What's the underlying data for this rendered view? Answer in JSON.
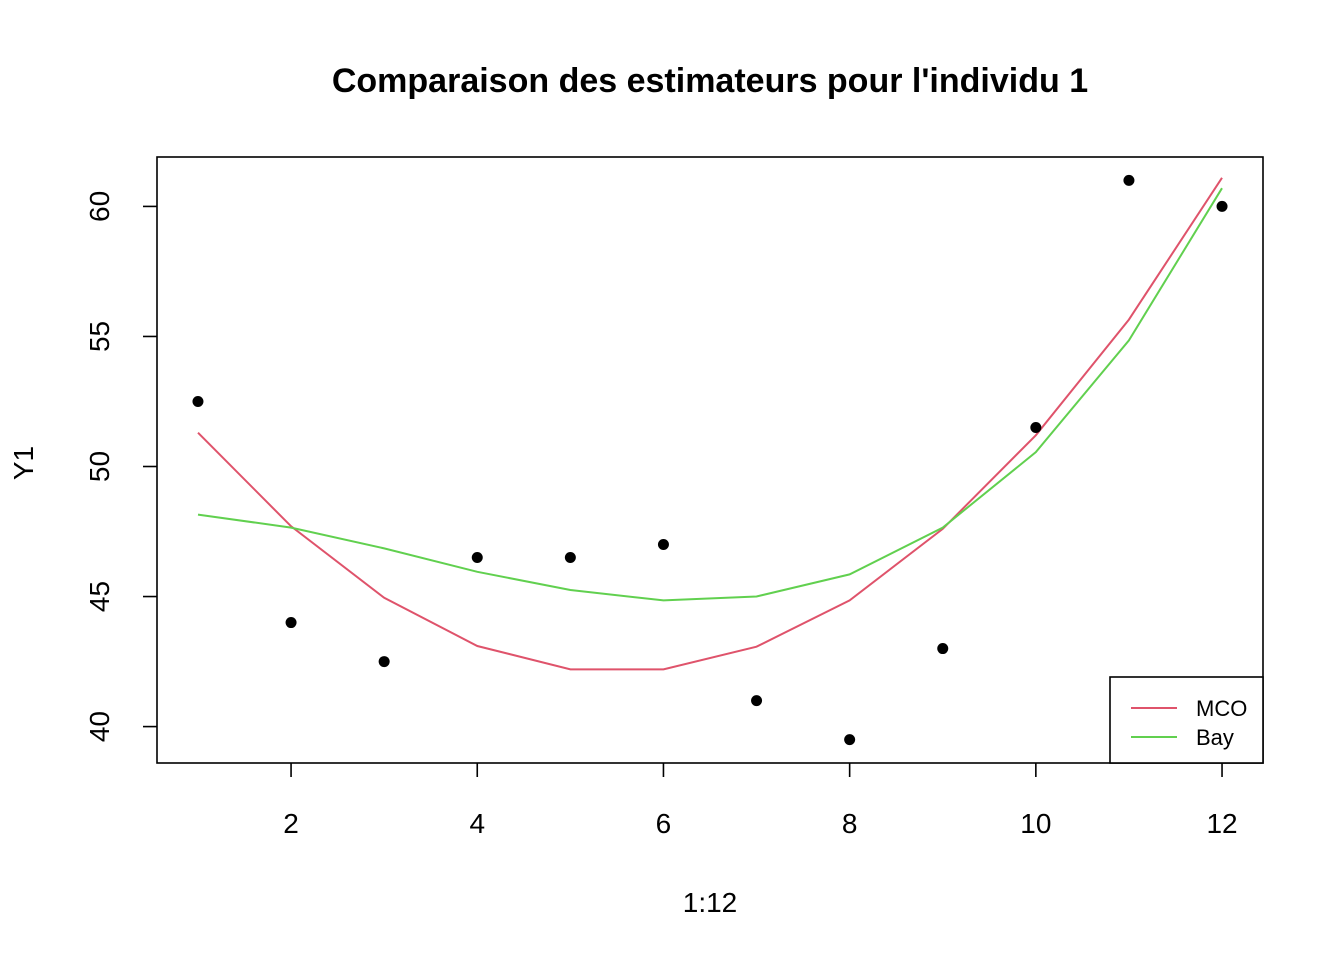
{
  "chart_data": {
    "type": "scatter",
    "title": "Comparaison des estimateurs pour l'individu 1",
    "xlabel": "1:12",
    "ylabel": "Y1",
    "xlim": [
      0.56,
      12.44
    ],
    "ylim": [
      38.6,
      61.9
    ],
    "xticks": [
      2,
      4,
      6,
      8,
      10,
      12
    ],
    "yticks": [
      40,
      45,
      50,
      55,
      60
    ],
    "grid": false,
    "legend_position": "bottom-right",
    "points": {
      "x": [
        1,
        2,
        3,
        4,
        5,
        6,
        7,
        8,
        9,
        10,
        11,
        12
      ],
      "y": [
        52.5,
        44,
        42.5,
        46.5,
        46.5,
        47,
        41,
        39.5,
        43,
        51.5,
        61,
        60
      ],
      "color": "#000000"
    },
    "series": [
      {
        "name": "MCO",
        "color": "#DF536B",
        "x": [
          1,
          2,
          3,
          4,
          5,
          6,
          7,
          8,
          9,
          10,
          11,
          12
        ],
        "values": [
          51.3,
          47.7,
          44.95,
          43.1,
          42.2,
          42.2,
          43.07,
          44.85,
          47.6,
          51.2,
          55.65,
          61.1
        ]
      },
      {
        "name": "Bay",
        "color": "#61D04F",
        "x": [
          1,
          2,
          3,
          4,
          5,
          6,
          7,
          8,
          9,
          10,
          11,
          12
        ],
        "values": [
          48.15,
          47.65,
          46.85,
          45.95,
          45.25,
          44.85,
          45,
          45.85,
          47.65,
          50.55,
          54.85,
          60.7
        ]
      }
    ]
  }
}
